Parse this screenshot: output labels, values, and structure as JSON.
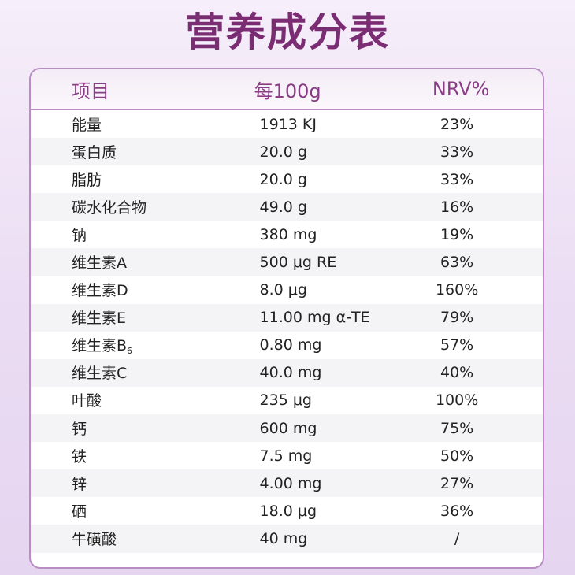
{
  "title": "营养成分表",
  "header": {
    "item": "项目",
    "per": "每100g",
    "nrv": "NRV%"
  },
  "rows": [
    {
      "name": "能量",
      "sub": "",
      "value": "1913 KJ",
      "nrv": "23%"
    },
    {
      "name": "蛋白质",
      "sub": "",
      "value": "20.0 g",
      "nrv": "33%"
    },
    {
      "name": "脂肪",
      "sub": "",
      "value": "20.0 g",
      "nrv": "33%"
    },
    {
      "name": "碳水化合物",
      "sub": "",
      "value": "49.0 g",
      "nrv": "16%"
    },
    {
      "name": "钠",
      "sub": "",
      "value": "380 mg",
      "nrv": "19%"
    },
    {
      "name": "维生素A",
      "sub": "",
      "value": "500 μg RE",
      "nrv": "63%"
    },
    {
      "name": "维生素D",
      "sub": "",
      "value": "8.0 μg",
      "nrv": "160%"
    },
    {
      "name": "维生素E",
      "sub": "",
      "value": "11.00 mg α-TE",
      "nrv": "79%"
    },
    {
      "name": "维生素B",
      "sub": "6",
      "value": "0.80 mg",
      "nrv": "57%"
    },
    {
      "name": "维生素C",
      "sub": "",
      "value": "40.0 mg",
      "nrv": "40%"
    },
    {
      "name": "叶酸",
      "sub": "",
      "value": "235 μg",
      "nrv": "100%"
    },
    {
      "name": "钙",
      "sub": "",
      "value": "600 mg",
      "nrv": "75%"
    },
    {
      "name": "铁",
      "sub": "",
      "value": "7.5 mg",
      "nrv": "50%"
    },
    {
      "name": "锌",
      "sub": "",
      "value": "4.00 mg",
      "nrv": "27%"
    },
    {
      "name": "硒",
      "sub": "",
      "value": "18.0 μg",
      "nrv": "36%"
    },
    {
      "name": "牛磺酸",
      "sub": "",
      "value": "40 mg",
      "nrv": "/"
    }
  ]
}
